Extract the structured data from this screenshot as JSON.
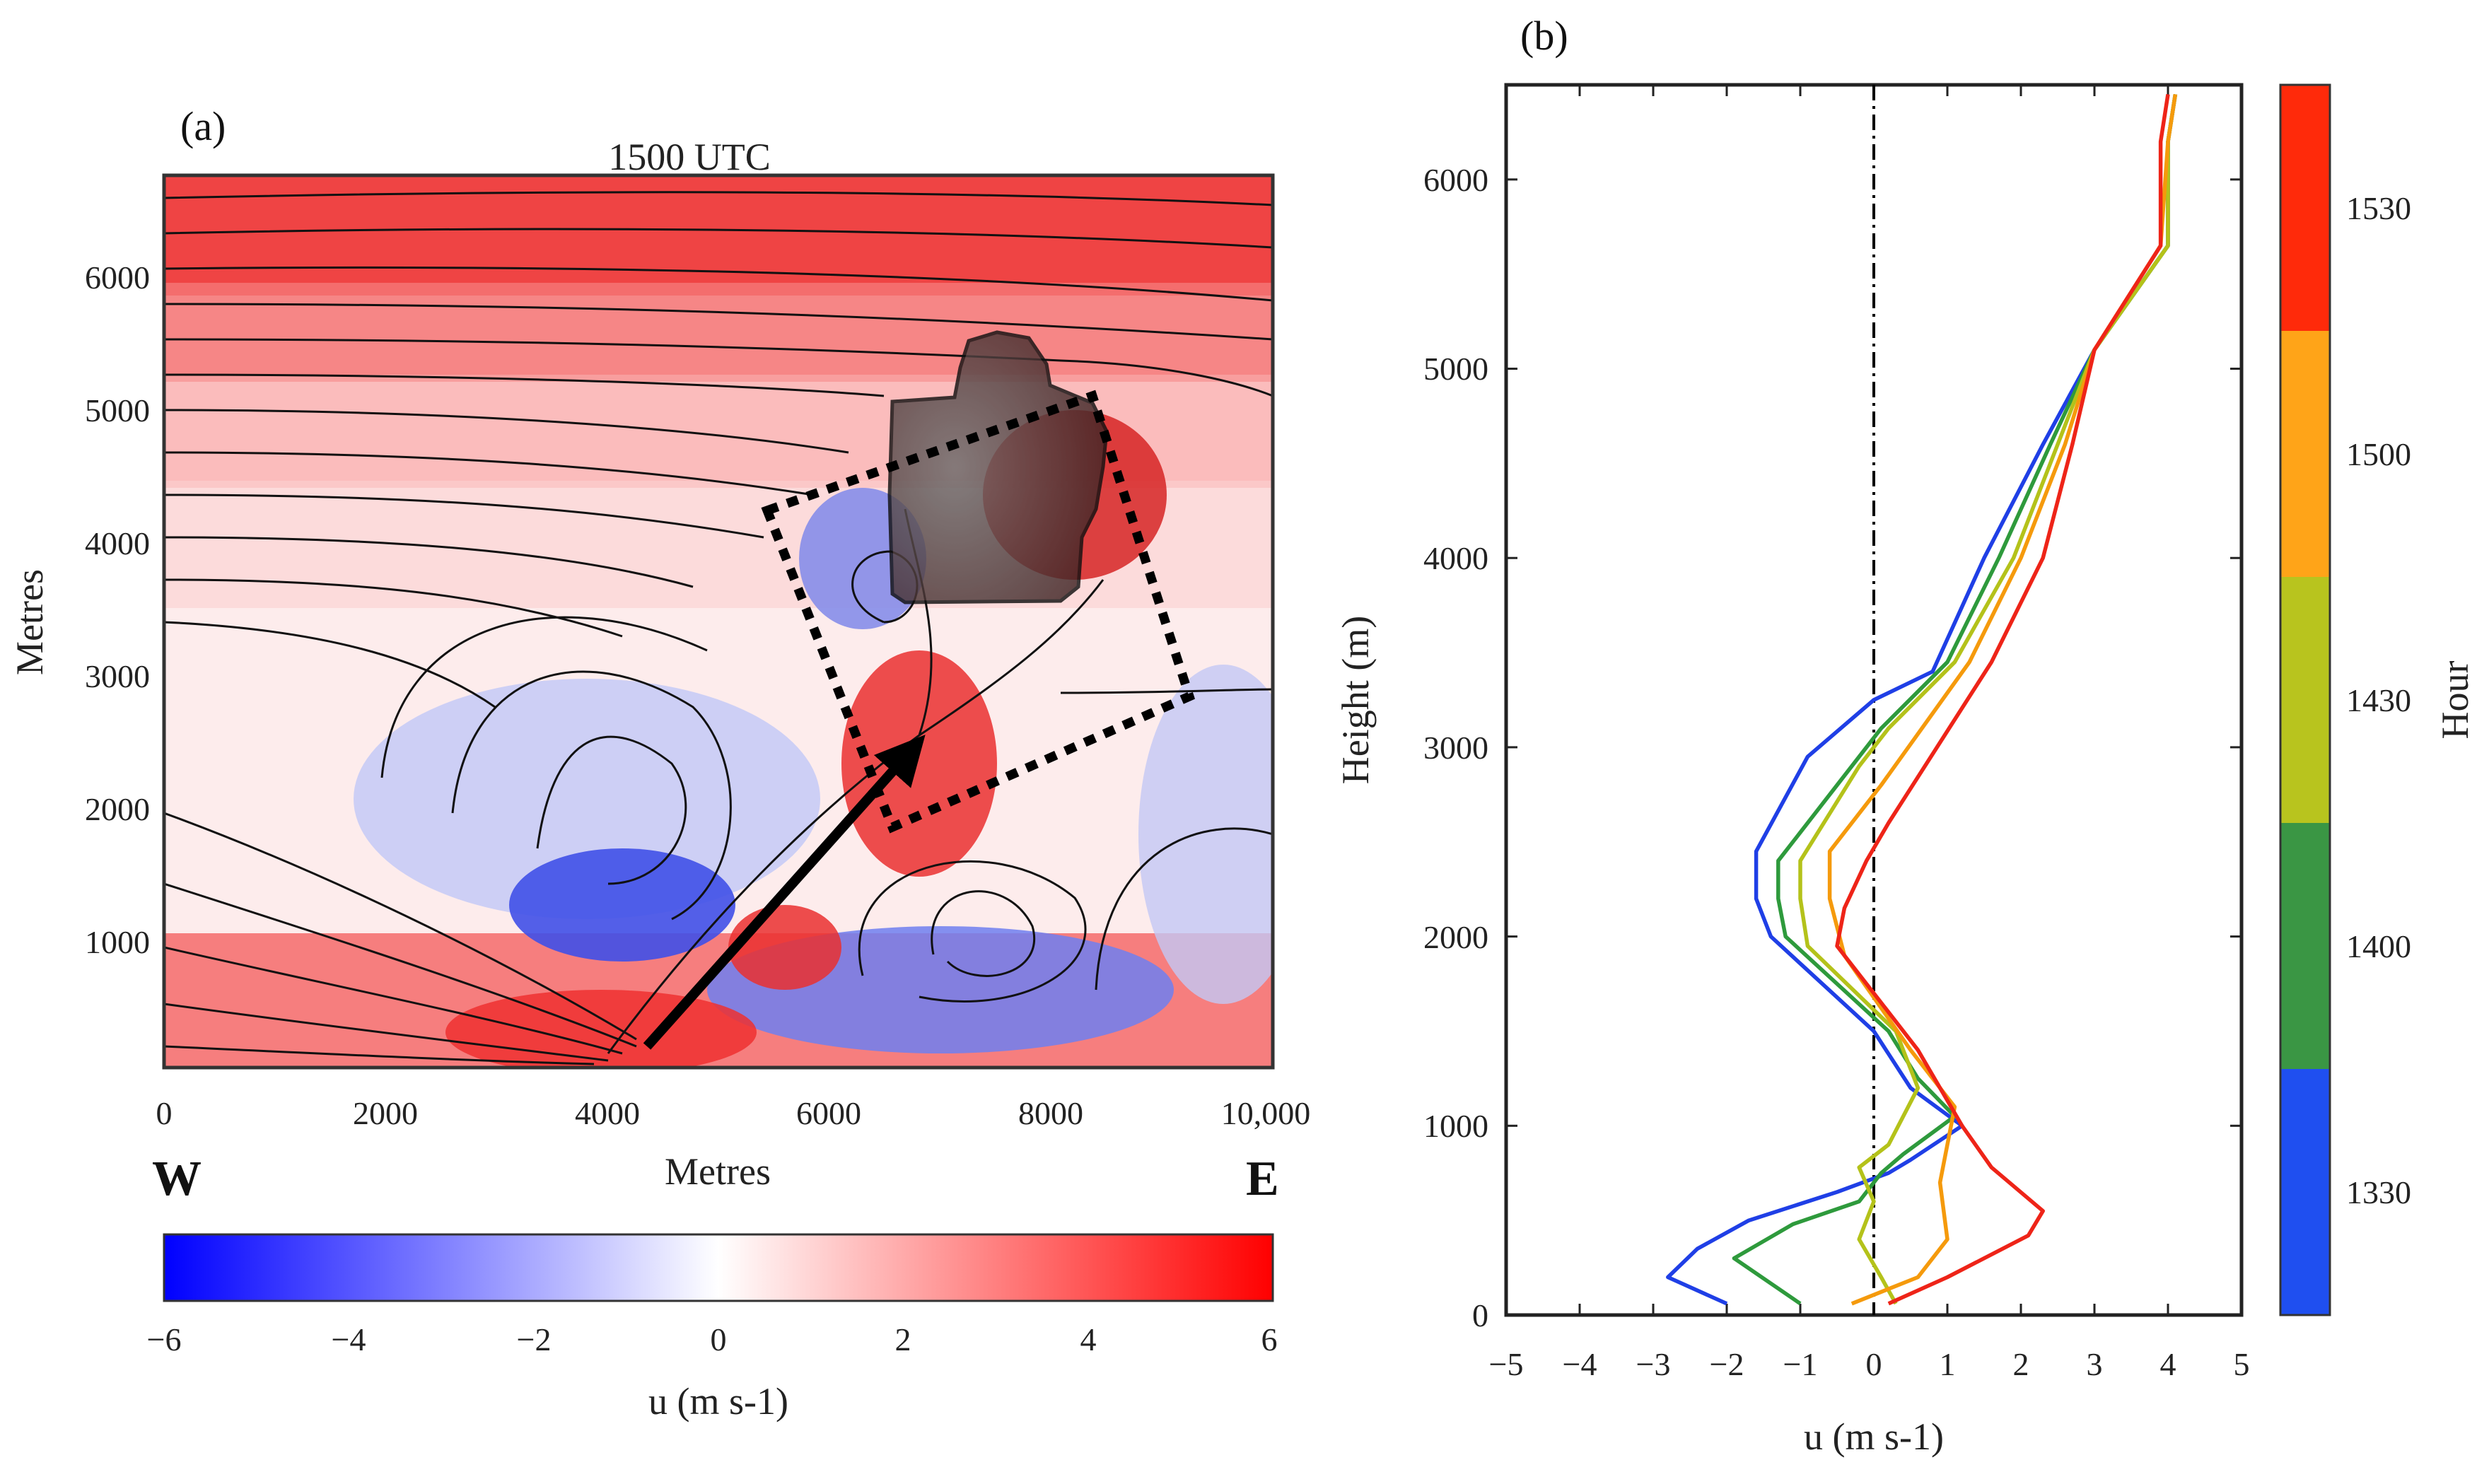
{
  "panel_a": {
    "label": "(a)",
    "title": "1500 UTC",
    "x_axis_label": "Metres",
    "y_axis_label": "Metres",
    "west_label": "W",
    "east_label": "E",
    "x_ticks": [
      "0",
      "2000",
      "4000",
      "6000",
      "8000",
      "10,000"
    ],
    "y_ticks": [
      "1000",
      "2000",
      "3000",
      "4000",
      "5000",
      "6000"
    ],
    "colorbar": {
      "label": "u (m s-1)",
      "ticks": [
        "−6",
        "−4",
        "−2",
        "0",
        "2",
        "4",
        "6"
      ],
      "min_color": "#0000ff",
      "mid_color": "#ffffff",
      "max_color": "#ff0000"
    }
  },
  "panel_b": {
    "label": "(b)",
    "x_axis_label": "u (m s-1)",
    "y_axis_label": "Height (m)",
    "colorbar_label": "Hour",
    "x_ticks": [
      "−5",
      "−4",
      "−3",
      "−2",
      "−1",
      "0",
      "1",
      "2",
      "3",
      "4",
      "5"
    ],
    "y_ticks": [
      "0",
      "1000",
      "2000",
      "3000",
      "4000",
      "5000",
      "6000"
    ],
    "hour_ticks": [
      "1330",
      "1400",
      "1430",
      "1500",
      "1530"
    ]
  },
  "chart_data": [
    {
      "type": "heatmap",
      "title": "1500 UTC",
      "variable": "u (m s-1)",
      "xlabel": "Metres",
      "ylabel": "Metres",
      "xlim": [
        0,
        10000
      ],
      "ylim": [
        0,
        6800
      ],
      "clim": [
        -6,
        6
      ],
      "features": {
        "cloud_outline": "dark shaded cloud region near x 6500-8400 m, y 3600-5600 m",
        "dashed_box": "tilted dotted rectangle spanning roughly x 5400-9200 m, y 1800-5200 m",
        "arrow": {
          "from": [
            4300,
            200
          ],
          "to": [
            6800,
            2600
          ]
        }
      }
    },
    {
      "type": "line",
      "xlabel": "u (m s-1)",
      "ylabel": "Height (m)",
      "xlim": [
        -5,
        5
      ],
      "ylim": [
        0,
        6500
      ],
      "legend": "colorbar (Hour)",
      "series": [
        {
          "name": "1330",
          "color": "#1f3fe6",
          "points": [
            [
              -2,
              60
            ],
            [
              -2.8,
              200
            ],
            [
              -2.4,
              350
            ],
            [
              -1.7,
              500
            ],
            [
              -0.5,
              650
            ],
            [
              0.2,
              750
            ],
            [
              0.5,
              820
            ],
            [
              1.2,
              1000
            ],
            [
              0.5,
              1200
            ],
            [
              0,
              1500
            ],
            [
              -1.4,
              2000
            ],
            [
              -1.6,
              2200
            ],
            [
              -1.6,
              2450
            ],
            [
              -0.9,
              2950
            ],
            [
              0,
              3250
            ],
            [
              0.8,
              3400
            ],
            [
              1.5,
              4000
            ],
            [
              2.3,
              4600
            ],
            [
              3.0,
              5100
            ],
            [
              4.0,
              5650
            ],
            [
              4.0,
              6200
            ],
            [
              4.1,
              6450
            ]
          ]
        },
        {
          "name": "1400",
          "color": "#2e9a3c",
          "points": [
            [
              -1,
              60
            ],
            [
              -1.9,
              300
            ],
            [
              -1.1,
              480
            ],
            [
              -0.2,
              600
            ],
            [
              0.1,
              750
            ],
            [
              0.4,
              850
            ],
            [
              1.1,
              1050
            ],
            [
              0.6,
              1250
            ],
            [
              0.2,
              1500
            ],
            [
              -1.2,
              2000
            ],
            [
              -1.3,
              2200
            ],
            [
              -1.3,
              2400
            ],
            [
              -0.5,
              2800
            ],
            [
              0.1,
              3100
            ],
            [
              1.0,
              3450
            ],
            [
              1.7,
              4000
            ],
            [
              2.4,
              4600
            ],
            [
              3.0,
              5100
            ],
            [
              4.0,
              5650
            ],
            [
              4.0,
              6200
            ],
            [
              4.1,
              6450
            ]
          ]
        },
        {
          "name": "1430",
          "color": "#b4c21a",
          "points": [
            [
              0.3,
              60
            ],
            [
              0.1,
              200
            ],
            [
              -0.2,
              400
            ],
            [
              0,
              600
            ],
            [
              -0.2,
              780
            ],
            [
              0.2,
              900
            ],
            [
              0.6,
              1200
            ],
            [
              0.3,
              1500
            ],
            [
              -0.9,
              1950
            ],
            [
              -1.0,
              2200
            ],
            [
              -1.0,
              2400
            ],
            [
              -0.2,
              2900
            ],
            [
              0.2,
              3100
            ],
            [
              1.1,
              3450
            ],
            [
              1.9,
              4000
            ],
            [
              2.5,
              4600
            ],
            [
              3.0,
              5100
            ],
            [
              4.0,
              5650
            ],
            [
              4.0,
              6200
            ],
            [
              4.1,
              6450
            ]
          ]
        },
        {
          "name": "1500",
          "color": "#f59a0c",
          "points": [
            [
              -0.3,
              60
            ],
            [
              0.6,
              200
            ],
            [
              1.0,
              400
            ],
            [
              0.9,
              700
            ],
            [
              1.1,
              1100
            ],
            [
              0.5,
              1400
            ],
            [
              -0.4,
              1900
            ],
            [
              -0.6,
              2200
            ],
            [
              -0.6,
              2450
            ],
            [
              0.1,
              2800
            ],
            [
              1.3,
              3450
            ],
            [
              2.0,
              4000
            ],
            [
              2.6,
              4600
            ],
            [
              3.0,
              5100
            ],
            [
              3.9,
              5650
            ],
            [
              4.0,
              6200
            ],
            [
              4.1,
              6450
            ]
          ]
        },
        {
          "name": "1530",
          "color": "#ee2418",
          "points": [
            [
              0.2,
              60
            ],
            [
              1.0,
              200
            ],
            [
              2.1,
              420
            ],
            [
              2.3,
              550
            ],
            [
              1.6,
              780
            ],
            [
              1.2,
              1000
            ],
            [
              0.6,
              1400
            ],
            [
              -0.5,
              1950
            ],
            [
              -0.4,
              2150
            ],
            [
              -0.1,
              2400
            ],
            [
              0.2,
              2600
            ],
            [
              1.6,
              3450
            ],
            [
              2.3,
              4000
            ],
            [
              2.7,
              4600
            ],
            [
              3.0,
              5100
            ],
            [
              3.9,
              5650
            ],
            [
              3.9,
              6200
            ],
            [
              4.0,
              6450
            ]
          ]
        }
      ]
    }
  ]
}
